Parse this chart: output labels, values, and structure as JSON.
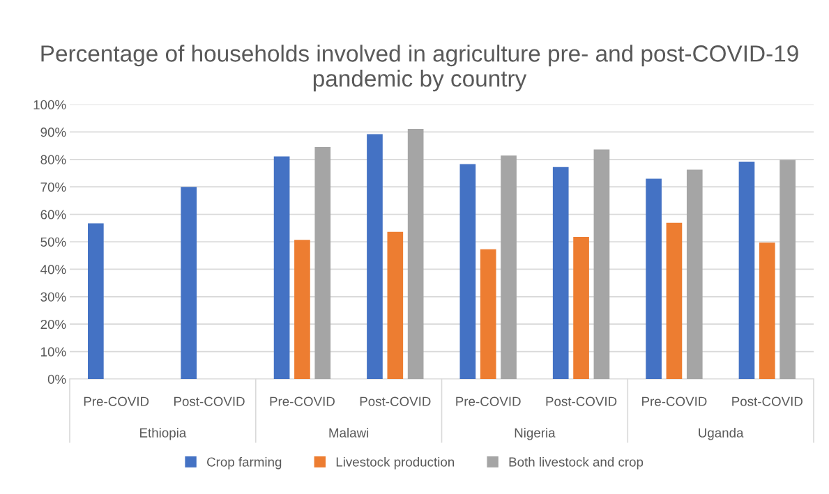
{
  "chart_data": {
    "type": "bar",
    "title": "Percentage of households involved in agriculture pre- and post-COVID-19 pandemic by country",
    "categories": [
      "Pre-COVID",
      "Post-COVID",
      "Pre-COVID",
      "Post-COVID",
      "Pre-COVID",
      "Post-COVID",
      "Pre-COVID",
      "Post-COVID"
    ],
    "annotations": [
      "Ethiopia",
      "Malawi",
      "Nigeria",
      "Uganda"
    ],
    "series": [
      {
        "name": "Crop farming",
        "color": "#4472c4",
        "values": [
          56.7,
          70.0,
          81.1,
          89.2,
          78.3,
          77.2,
          73.0,
          79.2
        ]
      },
      {
        "name": "Livestock production",
        "color": "#ed7d31",
        "values": [
          null,
          null,
          50.7,
          53.6,
          47.3,
          51.8,
          56.9,
          49.7
        ]
      },
      {
        "name": "Both livestock and crop",
        "color": "#a5a5a5",
        "values": [
          null,
          null,
          84.5,
          91.1,
          81.4,
          83.6,
          76.3,
          79.8
        ]
      }
    ],
    "ylim": [
      0,
      100
    ],
    "yticks": [
      {
        "value": 0,
        "label": "0%"
      },
      {
        "value": 10,
        "label": "10%"
      },
      {
        "value": 20,
        "label": "20%"
      },
      {
        "value": 30,
        "label": "30%"
      },
      {
        "value": 40,
        "label": "40%"
      },
      {
        "value": 50,
        "label": "50%"
      },
      {
        "value": 60,
        "label": "60%"
      },
      {
        "value": 70,
        "label": "70%"
      },
      {
        "value": 80,
        "label": "80%"
      },
      {
        "value": 90,
        "label": "90%"
      },
      {
        "value": 100,
        "label": "100%"
      }
    ],
    "grid": "y",
    "legend": "bottom"
  }
}
